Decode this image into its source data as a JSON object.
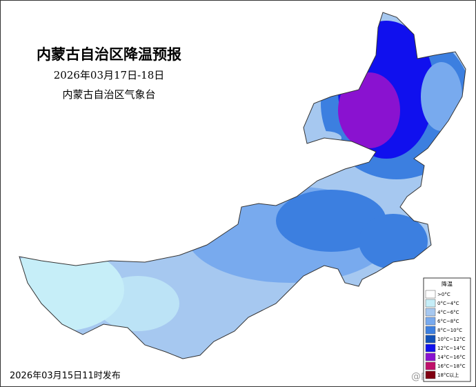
{
  "title": "内蒙古自治区降温预报",
  "subtitle": "2026年03月17日-18日",
  "issuer": "内蒙古自治区气象台",
  "issued": "2026年03月15日11时发布",
  "watermark": "@内蒙古天气",
  "legend": {
    "title": "降温",
    "items": [
      {
        "label": ">0°C",
        "color": "#ffffff"
      },
      {
        "label": "0°C~4°C",
        "color": "#c6eef8"
      },
      {
        "label": "4°C~6°C",
        "color": "#a6c8f0"
      },
      {
        "label": "6°C~8°C",
        "color": "#78aaee"
      },
      {
        "label": "8°C~10°C",
        "color": "#3c7fe0"
      },
      {
        "label": "10°C~12°C",
        "color": "#1050b8"
      },
      {
        "label": "12°C~14°C",
        "color": "#1010ee"
      },
      {
        "label": "14°C~16°C",
        "color": "#8a12d0"
      },
      {
        "label": "16°C~18°C",
        "color": "#c0106a"
      },
      {
        "label": "18°C以上",
        "color": "#800010"
      }
    ]
  }
}
